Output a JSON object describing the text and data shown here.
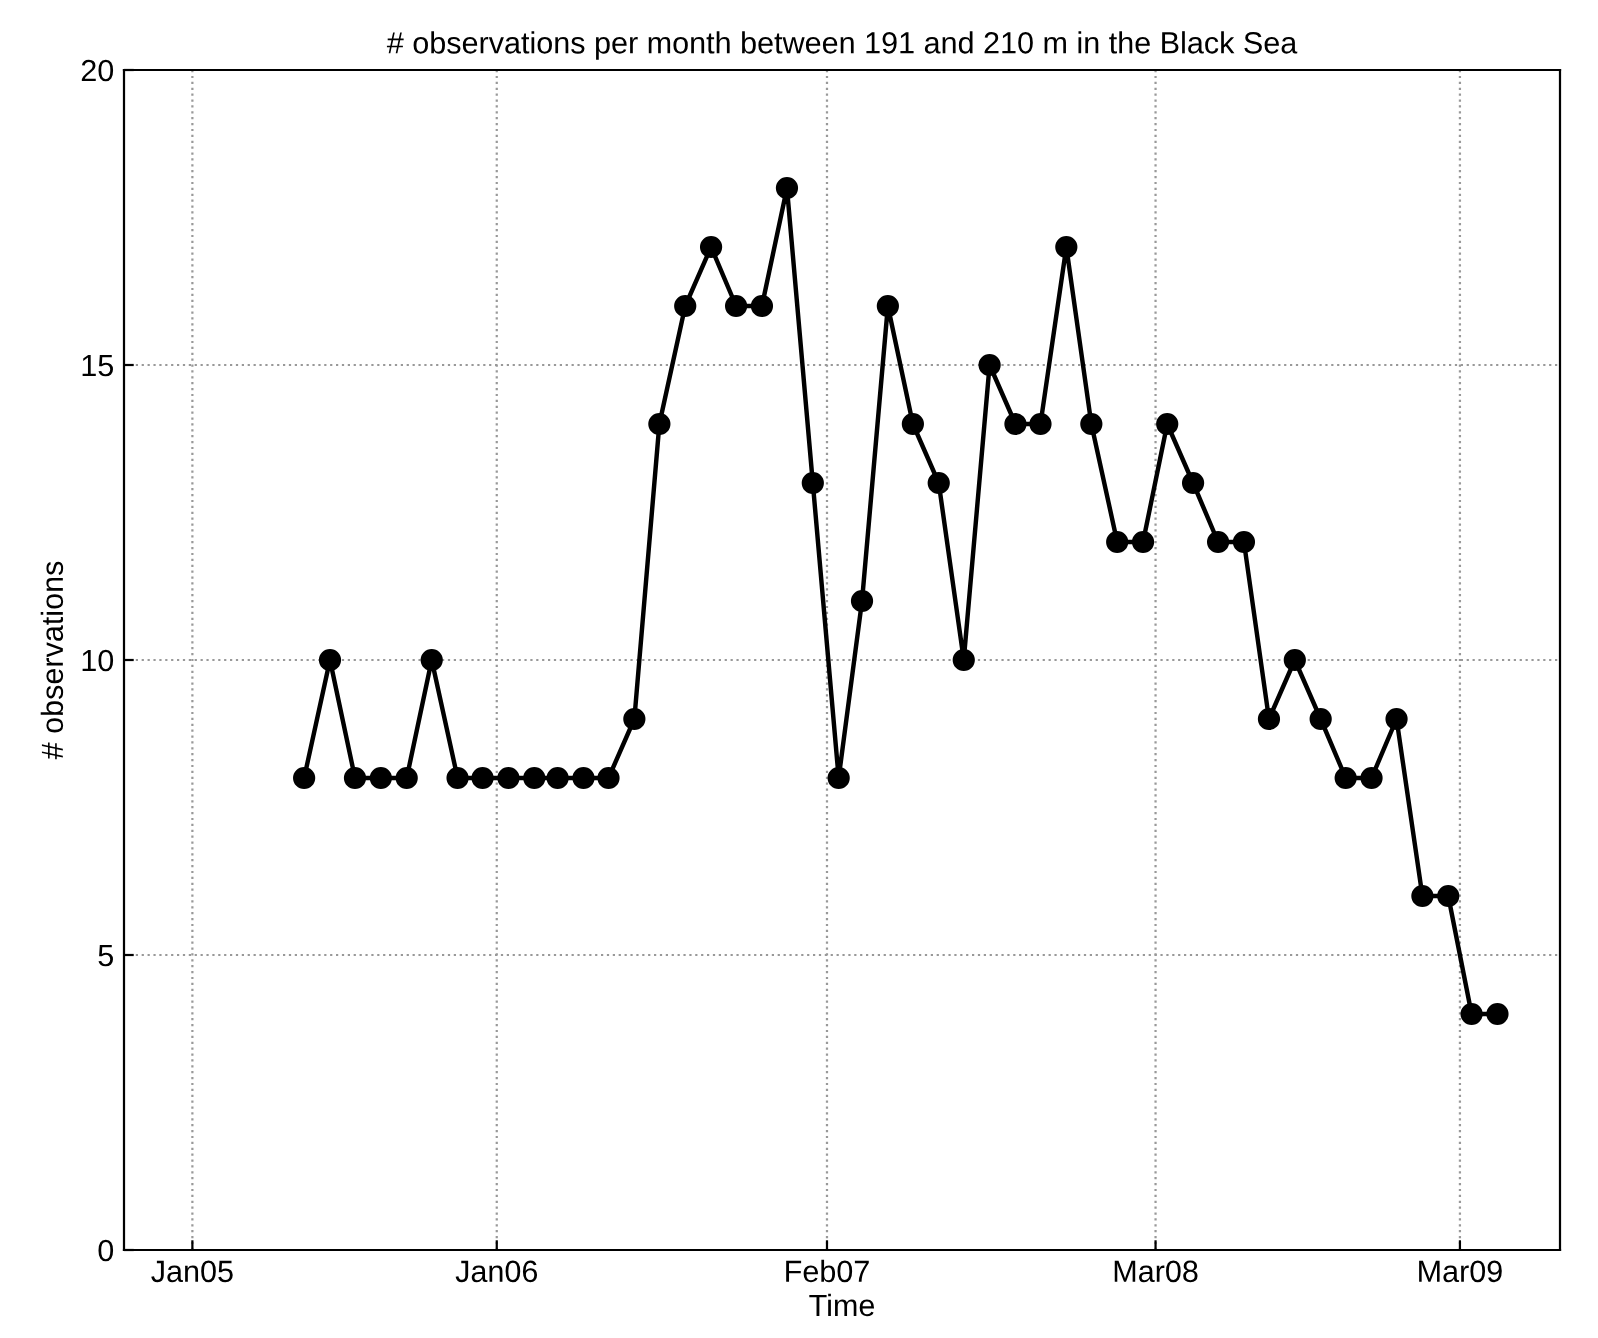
{
  "chart_data": {
    "type": "line",
    "title": "# observations per month between 191 and 210 m in the Black Sea",
    "xlabel": "Time",
    "ylabel": "# observations",
    "x": [
      "2005-05-15",
      "2005-06-15",
      "2005-07-15",
      "2005-08-15",
      "2005-09-15",
      "2005-10-15",
      "2005-11-15",
      "2005-12-15",
      "2006-01-15",
      "2006-02-15",
      "2006-03-15",
      "2006-04-15",
      "2006-05-15",
      "2006-06-15",
      "2006-07-15",
      "2006-08-15",
      "2006-09-15",
      "2006-10-15",
      "2006-11-15",
      "2006-12-15",
      "2007-01-15",
      "2007-02-15",
      "2007-03-15",
      "2007-04-15",
      "2007-05-15",
      "2007-06-15",
      "2007-07-15",
      "2007-08-15",
      "2007-09-15",
      "2007-10-15",
      "2007-11-15",
      "2007-12-15",
      "2008-01-15",
      "2008-02-15",
      "2008-03-15",
      "2008-04-15",
      "2008-05-15",
      "2008-06-15",
      "2008-07-15",
      "2008-08-15",
      "2008-09-15",
      "2008-10-15",
      "2008-11-15",
      "2008-12-15",
      "2009-01-15",
      "2009-02-15",
      "2009-03-15",
      "2009-04-15"
    ],
    "series": [
      {
        "color": "#000000",
        "values": [
          8,
          10,
          8,
          8,
          8,
          10,
          8,
          8,
          8,
          8,
          8,
          8,
          8,
          9,
          14,
          16,
          17,
          16,
          16,
          18,
          13,
          8,
          11,
          16,
          14,
          13,
          10,
          15,
          14,
          14,
          17,
          14,
          12,
          12,
          14,
          13,
          12,
          12,
          9,
          10,
          9,
          8,
          8,
          9,
          6,
          6,
          4,
          4
        ]
      }
    ],
    "xlim": [
      "2004-10-11",
      "2009-06-29"
    ],
    "xticks": [
      {
        "value": "2005-01-01",
        "label": "Jan05"
      },
      {
        "value": "2006-01-01",
        "label": "Jan06"
      },
      {
        "value": "2007-02-01",
        "label": "Feb07"
      },
      {
        "value": "2008-03-01",
        "label": "Mar08"
      },
      {
        "value": "2009-03-01",
        "label": "Mar09"
      }
    ],
    "ylim": [
      0,
      20
    ],
    "yticks": [
      0,
      5,
      10,
      15,
      20
    ],
    "grid": true,
    "marker": "circle",
    "line_style": "solid",
    "legend": false
  }
}
